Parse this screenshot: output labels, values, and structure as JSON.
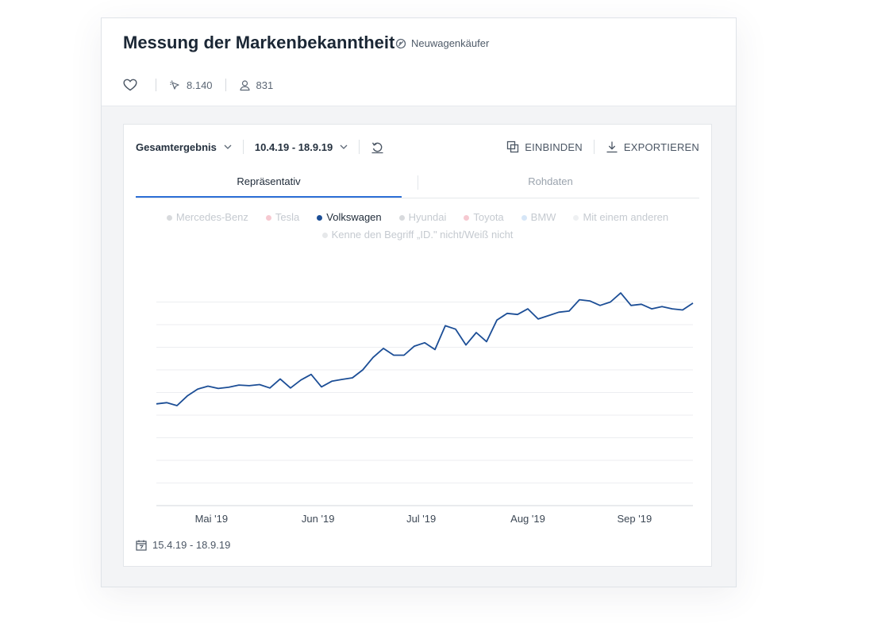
{
  "header": {
    "title": "Messung der Markenbekanntheit",
    "tag": "Neuwagenkäufer",
    "clicks": "8.140",
    "respondents": "831"
  },
  "toolbar": {
    "segment": "Gesamtergebnis",
    "date_range": "10.4.19 - 18.9.19",
    "embed_label": "EINBINDEN",
    "export_label": "EXPORTIEREN"
  },
  "tabs": [
    "Repräsentativ",
    "Rohdaten"
  ],
  "legend": [
    {
      "label": "Mercedes-Benz",
      "color": "#d8dadd",
      "active": false
    },
    {
      "label": "Tesla",
      "color": "#f6c9d1",
      "active": false
    },
    {
      "label": "Volkswagen",
      "color": "#1c4e96",
      "active": true
    },
    {
      "label": "Hyundai",
      "color": "#d8dadd",
      "active": false
    },
    {
      "label": "Toyota",
      "color": "#f6c9d1",
      "active": false
    },
    {
      "label": "BMW",
      "color": "#d6e6f7",
      "active": false
    },
    {
      "label": "Mit einem anderen",
      "color": "#eef0f2",
      "active": false
    },
    {
      "label": "Kenne den Begriff „ID.\" nicht/Weiß nicht",
      "color": "#e6e8ea",
      "active": false
    }
  ],
  "footer": {
    "date_range": "15.4.19 - 18.9.19"
  },
  "colors": {
    "accent": "#2d6fd6",
    "line": "#1c4e96"
  },
  "chart_data": {
    "type": "line",
    "series": [
      {
        "name": "Volkswagen",
        "x": [
          "2019-04-15",
          "2019-04-18",
          "2019-04-21",
          "2019-04-24",
          "2019-04-27",
          "2019-04-30",
          "2019-05-03",
          "2019-05-06",
          "2019-05-09",
          "2019-05-12",
          "2019-05-15",
          "2019-05-18",
          "2019-05-21",
          "2019-05-24",
          "2019-05-27",
          "2019-05-30",
          "2019-06-02",
          "2019-06-05",
          "2019-06-08",
          "2019-06-11",
          "2019-06-14",
          "2019-06-17",
          "2019-06-20",
          "2019-06-23",
          "2019-06-26",
          "2019-06-29",
          "2019-07-02",
          "2019-07-05",
          "2019-07-08",
          "2019-07-11",
          "2019-07-14",
          "2019-07-17",
          "2019-07-20",
          "2019-07-23",
          "2019-07-26",
          "2019-07-29",
          "2019-08-01",
          "2019-08-04",
          "2019-08-07",
          "2019-08-10",
          "2019-08-13",
          "2019-08-16",
          "2019-08-19",
          "2019-08-22",
          "2019-08-25",
          "2019-08-28",
          "2019-08-31",
          "2019-09-03",
          "2019-09-06",
          "2019-09-09",
          "2019-09-12",
          "2019-09-15",
          "2019-09-18"
        ],
        "values": [
          45.0,
          45.5,
          44.2,
          48.5,
          51.5,
          52.8,
          51.8,
          52.3,
          53.3,
          53.0,
          53.5,
          52.0,
          56.0,
          52.0,
          55.5,
          58.0,
          52.5,
          55.0,
          55.8,
          56.5,
          60.0,
          65.5,
          69.5,
          66.5,
          66.5,
          70.5,
          72.0,
          69.0,
          79.5,
          78.0,
          71.0,
          76.5,
          72.5,
          82.0,
          85.0,
          84.5,
          87.0,
          82.5,
          84.0,
          85.5,
          86.0,
          91.0,
          90.5,
          88.5,
          90.0,
          94.0,
          88.5,
          89.0,
          87.0,
          88.0,
          87.0,
          86.5,
          89.5
        ]
      }
    ],
    "x_tick_labels": [
      "Mai '19",
      "Jun '19",
      "Jul '19",
      "Aug '19",
      "Sep '19"
    ],
    "x_tick_positions": [
      "2019-05-01",
      "2019-06-01",
      "2019-07-01",
      "2019-08-01",
      "2019-09-01"
    ],
    "ylim": [
      0,
      100
    ],
    "y_gridlines": [
      0,
      10,
      20,
      30,
      40,
      50,
      60,
      70,
      80,
      90
    ],
    "grid": true,
    "legend_position": "top"
  }
}
